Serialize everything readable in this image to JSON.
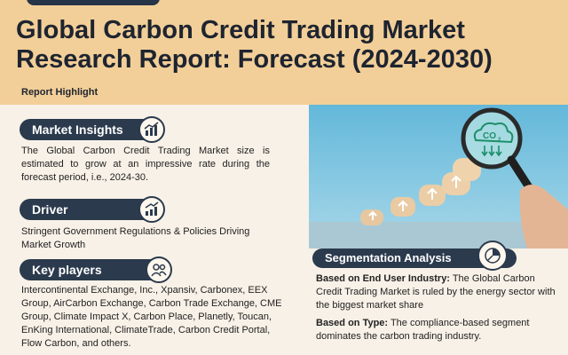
{
  "title": {
    "line1": "Global Carbon Credit Trading Market",
    "line2": "Research Report: Forecast (2024-2030)"
  },
  "report_highlight": "Report Highlight",
  "sections": {
    "market_insights": {
      "heading": "Market Insights",
      "text": "The Global Carbon Credit Trading Market size is estimated to grow at an impressive rate during the forecast period, i.e., 2024-30."
    },
    "driver": {
      "heading": "Driver",
      "text": "Stringent Government Regulations & Policies Driving Market Growth"
    },
    "key_players": {
      "heading": "Key players",
      "text": "Intercontinental Exchange, Inc., Xpansiv, Carbonex, EEX Group, AirCarbon Exchange, Carbon Trade Exchange, CME Group, Climate Impact X, Carbon Place, Planetly, Toucan, EnKing International, ClimateTrade, Carbon Credit Portal, Flow Carbon, and others."
    },
    "segmentation": {
      "heading": "Segmentation Analysis",
      "end_user_label": "Based on End User Industry:",
      "end_user_text": " The Global Carbon Credit Trading Market is ruled by the energy sector with the biggest market share",
      "type_label": "Based on Type:",
      "type_text": " The compliance-based segment dominates the carbon trading industry."
    }
  },
  "photo": {
    "cloud_text": "CO",
    "cloud_sub": "2"
  },
  "colors": {
    "top_band": "#f2cf98",
    "pill": "#2b3a4d",
    "background": "#f8f1e7"
  }
}
